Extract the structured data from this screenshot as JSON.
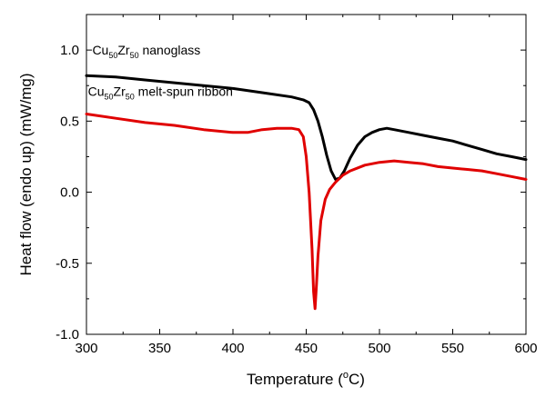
{
  "chart_data": {
    "type": "line",
    "xlabel_main": "Temperature (",
    "xlabel_sup": "o",
    "xlabel_end": "C)",
    "ylabel": "Heat flow (endo up) (mW/mg)",
    "xlim": [
      300,
      600
    ],
    "ylim": [
      -1.0,
      1.25
    ],
    "xticks": [
      "300",
      "350",
      "400",
      "450",
      "500",
      "550",
      "600"
    ],
    "yticks": [
      "-1.0",
      "-0.5",
      "0.0",
      "0.5",
      "1.0"
    ],
    "grid": false,
    "series": [
      {
        "name": "nanoglass",
        "color": "#000000",
        "x": [
          300,
          320,
          340,
          360,
          380,
          400,
          420,
          440,
          448,
          452,
          455,
          458,
          461,
          464,
          467,
          470,
          473,
          476,
          480,
          485,
          490,
          495,
          500,
          505,
          510,
          520,
          530,
          540,
          550,
          560,
          570,
          580,
          590,
          600
        ],
        "y": [
          0.82,
          0.81,
          0.79,
          0.77,
          0.75,
          0.73,
          0.7,
          0.67,
          0.65,
          0.63,
          0.58,
          0.5,
          0.39,
          0.26,
          0.15,
          0.09,
          0.1,
          0.15,
          0.24,
          0.33,
          0.39,
          0.42,
          0.44,
          0.45,
          0.44,
          0.42,
          0.4,
          0.38,
          0.36,
          0.33,
          0.3,
          0.27,
          0.25,
          0.23
        ]
      },
      {
        "name": "melt-spun ribbon",
        "color": "#e00000",
        "x": [
          300,
          320,
          340,
          360,
          380,
          400,
          410,
          420,
          430,
          440,
          445,
          448,
          450,
          452,
          454,
          455,
          456,
          457,
          458,
          460,
          463,
          466,
          470,
          475,
          480,
          490,
          500,
          510,
          520,
          530,
          540,
          550,
          560,
          570,
          580,
          590,
          600
        ],
        "y": [
          0.55,
          0.52,
          0.49,
          0.47,
          0.44,
          0.42,
          0.42,
          0.44,
          0.45,
          0.45,
          0.44,
          0.39,
          0.25,
          0.0,
          -0.4,
          -0.7,
          -0.82,
          -0.65,
          -0.45,
          -0.2,
          -0.05,
          0.02,
          0.07,
          0.12,
          0.15,
          0.19,
          0.21,
          0.22,
          0.21,
          0.2,
          0.18,
          0.17,
          0.16,
          0.15,
          0.13,
          0.11,
          0.09
        ]
      }
    ],
    "annotations": [
      {
        "base1": "Cu",
        "sub1": "50",
        "base2": "Zr",
        "sub2": "50",
        "text": "  nanoglass",
        "x": 304,
        "y": 1.0
      },
      {
        "base1": "Cu",
        "sub1": "50",
        "base2": "Zr",
        "sub2": "50",
        "text": "  melt-spun ribbon",
        "x": 301,
        "y": 0.71
      }
    ]
  }
}
